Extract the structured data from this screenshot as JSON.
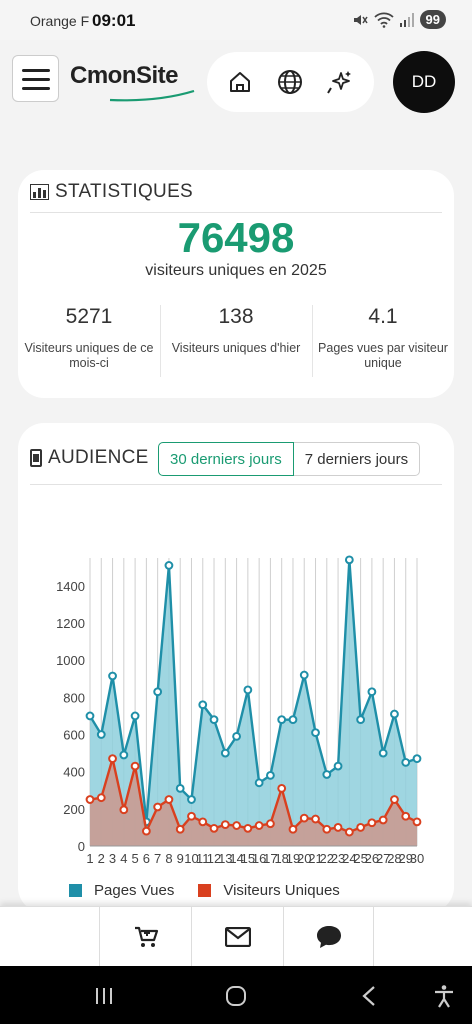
{
  "status_bar": {
    "carrier": "Orange F",
    "time": "09:01",
    "battery": "99"
  },
  "header": {
    "logo_part1": "Cmon",
    "logo_part2": "Site",
    "avatar_initials": "DD",
    "nav_icons": [
      "home-icon",
      "globe-icon",
      "sparkles-icon"
    ]
  },
  "stats": {
    "title": "STATISTIQUES",
    "total": "76498",
    "total_caption": "visiteurs uniques en 2025",
    "items": [
      {
        "value": "5271",
        "label": "Visiteurs uniques de ce mois-ci"
      },
      {
        "value": "138",
        "label": "Visiteurs uniques d'hier"
      },
      {
        "value": "4.1",
        "label": "Pages vues par visiteur unique"
      }
    ]
  },
  "audience": {
    "title": "AUDIENCE",
    "tabs": [
      "30 derniers jours",
      "7 derniers jours"
    ],
    "active_tab": "30 derniers jours"
  },
  "chart_data": {
    "type": "area",
    "x": [
      1,
      2,
      3,
      4,
      5,
      6,
      7,
      8,
      9,
      10,
      11,
      12,
      13,
      14,
      15,
      16,
      17,
      18,
      19,
      20,
      21,
      22,
      23,
      24,
      25,
      26,
      27,
      28,
      29,
      30
    ],
    "ylim": [
      0,
      1550
    ],
    "yticks": [
      0,
      200,
      400,
      600,
      800,
      1000,
      1200,
      1400
    ],
    "grid": "vertical",
    "legend_position": "bottom",
    "series": [
      {
        "name": "Pages Vues",
        "color": "#1f8fa8",
        "fill": "#8ecfdc",
        "values": [
          700,
          600,
          915,
          490,
          700,
          130,
          830,
          1510,
          310,
          250,
          760,
          680,
          500,
          590,
          840,
          340,
          380,
          680,
          680,
          920,
          610,
          385,
          430,
          1540,
          680,
          830,
          500,
          710,
          450,
          470
        ]
      },
      {
        "name": "Visiteurs Uniques",
        "color": "#d9401f",
        "fill": "#c99b92",
        "values": [
          250,
          260,
          470,
          195,
          430,
          80,
          210,
          250,
          90,
          160,
          130,
          95,
          115,
          110,
          95,
          110,
          120,
          310,
          90,
          150,
          145,
          90,
          100,
          75,
          100,
          125,
          140,
          250,
          160,
          130
        ]
      }
    ]
  },
  "bottom_nav": {
    "icons": [
      "cart-icon",
      "mail-icon",
      "chat-icon"
    ]
  },
  "colors": {
    "accent": "#1a9b72",
    "page_views": "#1f8fa8",
    "unique_visitors": "#d9401f"
  }
}
